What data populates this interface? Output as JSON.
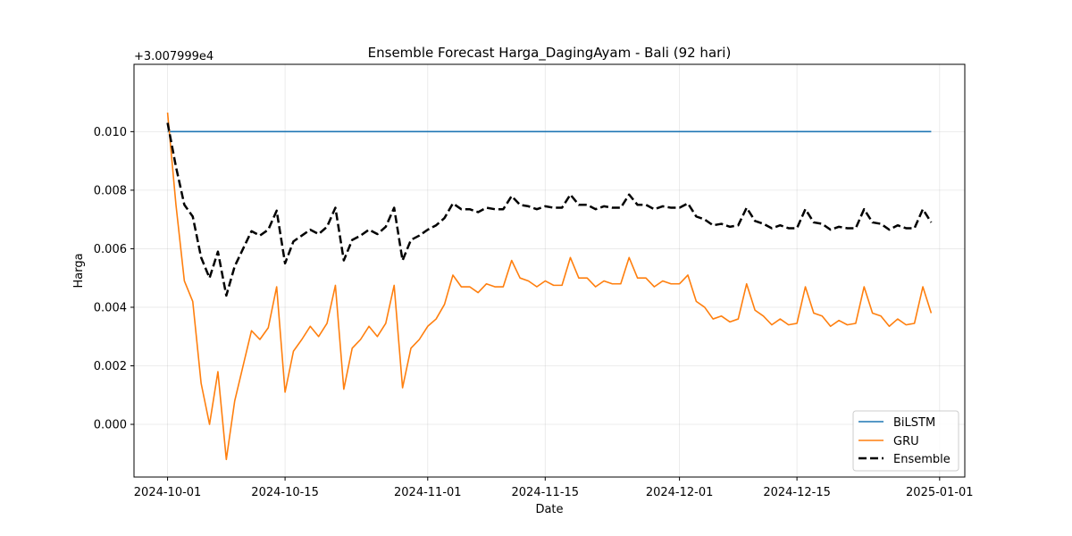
{
  "chart_data": {
    "type": "line",
    "title": "Ensemble Forecast Harga_DagingAyam - Bali (92 hari)",
    "xlabel": "Date",
    "ylabel": "Harga",
    "offset_label": "+3.007999e4",
    "x_start": "2024-10-01",
    "x_end": "2024-12-31",
    "xlim": [
      "2024-09-27",
      "2025-01-04"
    ],
    "ylim": [
      -0.0018,
      0.0123
    ],
    "x_ticks": [
      "2024-10-01",
      "2024-10-15",
      "2024-11-01",
      "2024-11-15",
      "2024-12-01",
      "2024-12-15",
      "2025-01-01"
    ],
    "y_ticks": [
      0.0,
      0.002,
      0.004,
      0.006,
      0.008,
      0.01
    ],
    "y_tick_labels": [
      "0.000",
      "0.002",
      "0.004",
      "0.006",
      "0.008",
      "0.010"
    ],
    "grid": true,
    "legend_position": "lower-right",
    "series": [
      {
        "name": "BiLSTM",
        "color": "#1f77b4",
        "style": "solid",
        "values": [
          0.01,
          0.01,
          0.01,
          0.01,
          0.01,
          0.01,
          0.01,
          0.01,
          0.01,
          0.01,
          0.01,
          0.01,
          0.01,
          0.01,
          0.01,
          0.01,
          0.01,
          0.01,
          0.01,
          0.01,
          0.01,
          0.01,
          0.01,
          0.01,
          0.01,
          0.01,
          0.01,
          0.01,
          0.01,
          0.01,
          0.01,
          0.01,
          0.01,
          0.01,
          0.01,
          0.01,
          0.01,
          0.01,
          0.01,
          0.01,
          0.01,
          0.01,
          0.01,
          0.01,
          0.01,
          0.01,
          0.01,
          0.01,
          0.01,
          0.01,
          0.01,
          0.01,
          0.01,
          0.01,
          0.01,
          0.01,
          0.01,
          0.01,
          0.01,
          0.01,
          0.01,
          0.01,
          0.01,
          0.01,
          0.01,
          0.01,
          0.01,
          0.01,
          0.01,
          0.01,
          0.01,
          0.01,
          0.01,
          0.01,
          0.01,
          0.01,
          0.01,
          0.01,
          0.01,
          0.01,
          0.01,
          0.01,
          0.01,
          0.01,
          0.01,
          0.01,
          0.01,
          0.01,
          0.01,
          0.01,
          0.01,
          0.01
        ]
      },
      {
        "name": "GRU",
        "color": "#ff7f0e",
        "style": "solid",
        "values": [
          0.01065,
          0.0075,
          0.0049,
          0.0042,
          0.0014,
          0.0,
          0.0018,
          -0.0012,
          0.0008,
          0.002,
          0.0032,
          0.0029,
          0.0033,
          0.0047,
          0.0011,
          0.0025,
          0.0029,
          0.00335,
          0.003,
          0.00345,
          0.00475,
          0.0012,
          0.0026,
          0.0029,
          0.00335,
          0.003,
          0.00345,
          0.00475,
          0.00125,
          0.0026,
          0.0029,
          0.00335,
          0.0036,
          0.0041,
          0.0051,
          0.0047,
          0.0047,
          0.0045,
          0.0048,
          0.0047,
          0.0047,
          0.0056,
          0.005,
          0.0049,
          0.0047,
          0.0049,
          0.00475,
          0.00475,
          0.0057,
          0.005,
          0.005,
          0.0047,
          0.0049,
          0.0048,
          0.0048,
          0.0057,
          0.005,
          0.005,
          0.0047,
          0.0049,
          0.0048,
          0.0048,
          0.0051,
          0.0042,
          0.004,
          0.0036,
          0.0037,
          0.0035,
          0.0036,
          0.0048,
          0.0039,
          0.0037,
          0.0034,
          0.0036,
          0.0034,
          0.00345,
          0.0047,
          0.0038,
          0.0037,
          0.00335,
          0.00355,
          0.0034,
          0.00345,
          0.0047,
          0.0038,
          0.0037,
          0.00335,
          0.0036,
          0.0034,
          0.00345,
          0.0047,
          0.0038
        ]
      },
      {
        "name": "Ensemble",
        "color": "#000000",
        "style": "dashed",
        "values": [
          0.0103,
          0.0088,
          0.0075,
          0.0071,
          0.0057,
          0.005,
          0.0059,
          0.0044,
          0.0054,
          0.006,
          0.0066,
          0.00645,
          0.00665,
          0.0073,
          0.0055,
          0.00625,
          0.00645,
          0.00665,
          0.0065,
          0.00675,
          0.0074,
          0.0056,
          0.0063,
          0.00645,
          0.00665,
          0.0065,
          0.00675,
          0.0074,
          0.0056,
          0.0063,
          0.00645,
          0.00665,
          0.0068,
          0.00705,
          0.00755,
          0.00735,
          0.00735,
          0.00725,
          0.0074,
          0.00735,
          0.00735,
          0.0078,
          0.0075,
          0.00745,
          0.00735,
          0.00745,
          0.0074,
          0.0074,
          0.00785,
          0.0075,
          0.0075,
          0.00735,
          0.00745,
          0.0074,
          0.0074,
          0.00785,
          0.0075,
          0.0075,
          0.00735,
          0.00745,
          0.0074,
          0.0074,
          0.00755,
          0.0071,
          0.007,
          0.0068,
          0.00685,
          0.00675,
          0.0068,
          0.0074,
          0.00695,
          0.00685,
          0.0067,
          0.0068,
          0.0067,
          0.0067,
          0.00735,
          0.0069,
          0.00685,
          0.00665,
          0.00675,
          0.0067,
          0.0067,
          0.00735,
          0.0069,
          0.00685,
          0.00665,
          0.0068,
          0.0067,
          0.0067,
          0.00735,
          0.0069
        ]
      }
    ]
  }
}
